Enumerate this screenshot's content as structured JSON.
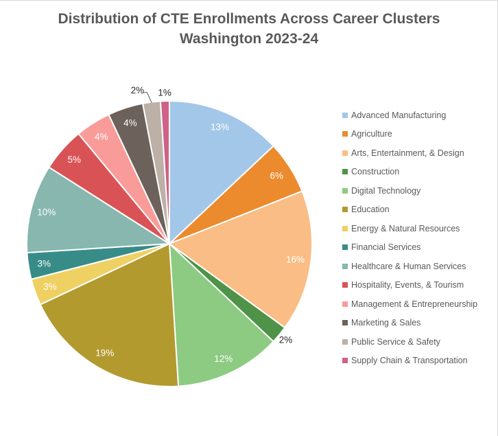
{
  "title": {
    "line1": "Distribution of CTE Enrollments Across Career Clusters",
    "line2": "Washington 2023-24"
  },
  "chart_data": {
    "type": "pie",
    "title": "Distribution of CTE Enrollments Across Career Clusters Washington 2023-24",
    "legend_position": "right",
    "start_angle_deg": 0,
    "direction": "clockwise",
    "label_format": "percent",
    "inside_label_color": "#ffffff",
    "outside_label_color": "#262626",
    "legend_text_color": "#595959",
    "title_color": "#595959",
    "slices": [
      {
        "label": "Advanced Manufacturing",
        "value_pct": 13,
        "color": "#A3C7E8",
        "label_text": "13%",
        "label_placement": "inside"
      },
      {
        "label": "Agriculture",
        "value_pct": 6,
        "color": "#EC8A2E",
        "label_text": "6%",
        "label_placement": "inside"
      },
      {
        "label": "Arts, Entertainment, & Design",
        "value_pct": 16,
        "color": "#F9BD85",
        "label_text": "16%",
        "label_placement": "inside"
      },
      {
        "label": "Construction",
        "value_pct": 2,
        "color": "#4E9348",
        "label_text": "2%",
        "label_placement": "outside"
      },
      {
        "label": "Digital Technology",
        "value_pct": 12,
        "color": "#8CCB81",
        "label_text": "12%",
        "label_placement": "inside"
      },
      {
        "label": "Education",
        "value_pct": 19,
        "color": "#B29A2E",
        "label_text": "19%",
        "label_placement": "inside"
      },
      {
        "label": "Energy & Natural Resources",
        "value_pct": 3,
        "color": "#EFD063",
        "label_text": "3%",
        "label_placement": "inside"
      },
      {
        "label": "Financial Services",
        "value_pct": 3,
        "color": "#378C88",
        "label_text": "3%",
        "label_placement": "inside"
      },
      {
        "label": "Healthcare & Human Services",
        "value_pct": 10,
        "color": "#87B7AF",
        "label_text": "10%",
        "label_placement": "inside"
      },
      {
        "label": "Hospitality, Events, & Tourism",
        "value_pct": 5,
        "color": "#D95356",
        "label_text": "5%",
        "label_placement": "inside"
      },
      {
        "label": "Management & Entrepreneurship",
        "value_pct": 4,
        "color": "#F99C99",
        "label_text": "4%",
        "label_placement": "inside"
      },
      {
        "label": "Marketing & Sales",
        "value_pct": 4,
        "color": "#6C615B",
        "label_text": "4%",
        "label_placement": "inside"
      },
      {
        "label": "Public Service & Safety",
        "value_pct": 2,
        "color": "#BCB0A7",
        "label_text": "2%",
        "label_placement": "outside-leader"
      },
      {
        "label": "Supply Chain & Transportation",
        "value_pct": 1,
        "color": "#CF6287",
        "label_text": "1%",
        "label_placement": "outside"
      }
    ]
  }
}
